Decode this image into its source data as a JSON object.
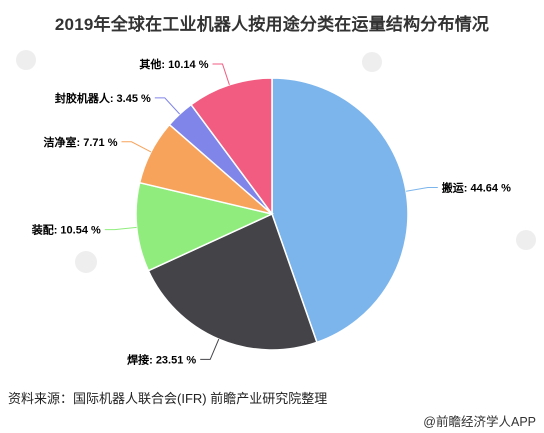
{
  "chart_data": {
    "type": "pie",
    "title": "2019年全球在工业机器人按用途分类在运量结构分布情况",
    "slices": [
      {
        "label": "搬运",
        "value": 44.64,
        "display": "搬运: 44.64 %",
        "color": "#7cb5ec"
      },
      {
        "label": "焊接",
        "value": 23.51,
        "display": "焊接: 23.51 %",
        "color": "#434348"
      },
      {
        "label": "装配",
        "value": 10.54,
        "display": "装配: 10.54 %",
        "color": "#90ed7d"
      },
      {
        "label": "洁净室",
        "value": 7.71,
        "display": "洁净室: 7.71 %",
        "color": "#f7a35c"
      },
      {
        "label": "封胶机器人",
        "value": 3.45,
        "display": "封胶机器人: 3.45 %",
        "color": "#8085e9"
      },
      {
        "label": "其他",
        "value": 10.14,
        "display": "其他: 10.14 %",
        "color": "#f15c80"
      }
    ],
    "start_angle_deg": 0,
    "direction": "clockwise"
  },
  "footer": {
    "source": "资料来源：国际机器人联合会(IFR) 前瞻产业研究院整理",
    "credit": "@前瞻经济学人APP"
  }
}
